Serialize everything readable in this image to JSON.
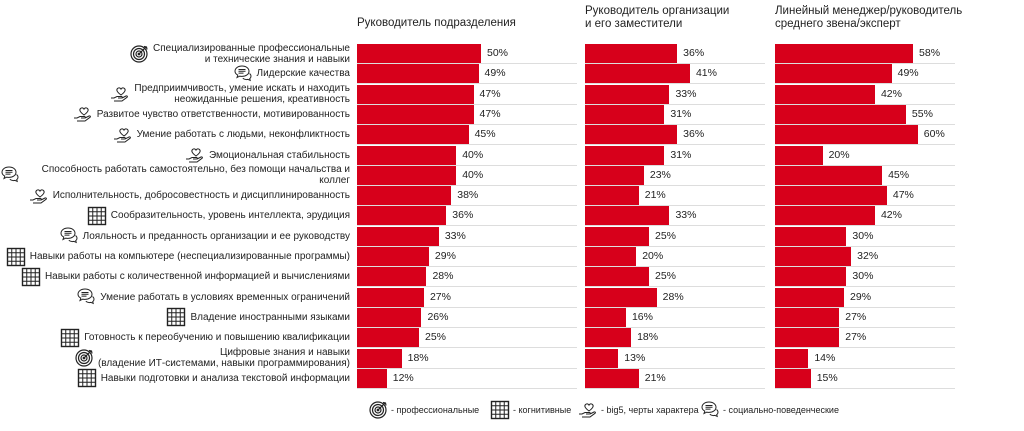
{
  "chart_data": {
    "type": "bar",
    "orientation": "horizontal",
    "categories": [
      "Специализированные профессиональные\nи технические знания и навыки",
      "Лидерские качества",
      "Предприимчивость, умение искать и находить\nнеожиданные решения, креативность",
      "Развитое чувство ответственности, мотивированность",
      "Умение работать с людьми, неконфликтность",
      "Эмоциональная стабильность",
      "Способность работать самостоятельно, без помощи начальства и коллег",
      "Исполнительность, добросовестность и дисциплинированность",
      "Сообразительность, уровень интеллекта, эрудиция",
      "Лояльность и преданность организации и ее руководству",
      "Навыки работы на компьютере (неспециализированные программы)",
      "Навыки работы с количественной информацией и вычислениями",
      "Умение работать в условиях временных ограничений",
      "Владение иностранными языками",
      "Готовность к переобучению и повышению квалификации",
      "Цифровые знания и навыки\n(владение ИТ-системами, навыки программирования)",
      "Навыки подготовки и анализа текстовой информации"
    ],
    "category_icons": [
      "target",
      "chat",
      "heart-hand",
      "heart-hand",
      "heart-hand",
      "heart-hand",
      "chat",
      "heart-hand",
      "grid",
      "chat",
      "grid",
      "grid",
      "chat",
      "grid",
      "grid",
      "target",
      "grid"
    ],
    "series": [
      {
        "name": "Руководитель подразделения",
        "values": [
          50,
          49,
          47,
          47,
          45,
          40,
          40,
          38,
          36,
          33,
          29,
          28,
          27,
          26,
          25,
          18,
          12
        ]
      },
      {
        "name": "Руководитель организации\nи его заместители",
        "values": [
          36,
          41,
          33,
          31,
          36,
          31,
          23,
          21,
          33,
          25,
          20,
          25,
          28,
          16,
          18,
          13,
          21
        ]
      },
      {
        "name": "Линейный менеджер/руководитель\nсреднего звена/эксперт",
        "values": [
          58,
          49,
          42,
          55,
          60,
          20,
          45,
          47,
          42,
          30,
          32,
          30,
          29,
          27,
          27,
          14,
          15
        ]
      }
    ],
    "value_suffix": "%",
    "bar_color": "#d7001b",
    "legend": [
      {
        "icon": "target",
        "label": "- профессиональные"
      },
      {
        "icon": "grid",
        "label": "- когнитивные"
      },
      {
        "icon": "heart-hand",
        "label": "- big5, черты характера"
      },
      {
        "icon": "chat",
        "label": "- социально-поведенческие"
      }
    ]
  }
}
